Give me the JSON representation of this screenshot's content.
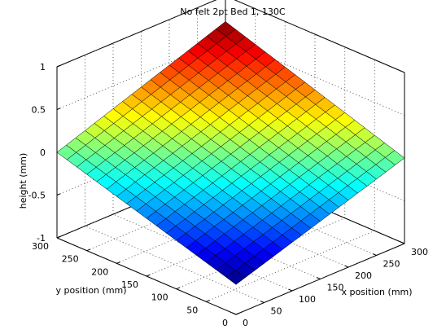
{
  "chart_data": {
    "type": "surface",
    "title": "No felt 2pt Bed 1, 130C",
    "xlabel": "x position (mm)",
    "ylabel": "y position (mm)",
    "zlabel": "height (mm)",
    "xlim": [
      0,
      300
    ],
    "ylim": [
      0,
      300
    ],
    "zlim": [
      -1,
      1
    ],
    "xticks": [
      "0",
      "50",
      "100",
      "150",
      "200",
      "250",
      "300"
    ],
    "yticks": [
      "0",
      "50",
      "100",
      "150",
      "200",
      "250",
      "300"
    ],
    "zticks": [
      "-1",
      "-0.5",
      "0",
      "0.5",
      "1"
    ],
    "grid": true,
    "box": true,
    "colormap": "jet",
    "grid_resolution": [
      18,
      18
    ],
    "corners": [
      {
        "x": 0,
        "y": 0,
        "z": -0.65
      },
      {
        "x": 300,
        "y": 0,
        "z": 0.0
      },
      {
        "x": 0,
        "y": 300,
        "z": 0.0
      },
      {
        "x": 300,
        "y": 300,
        "z": 0.7
      }
    ]
  }
}
